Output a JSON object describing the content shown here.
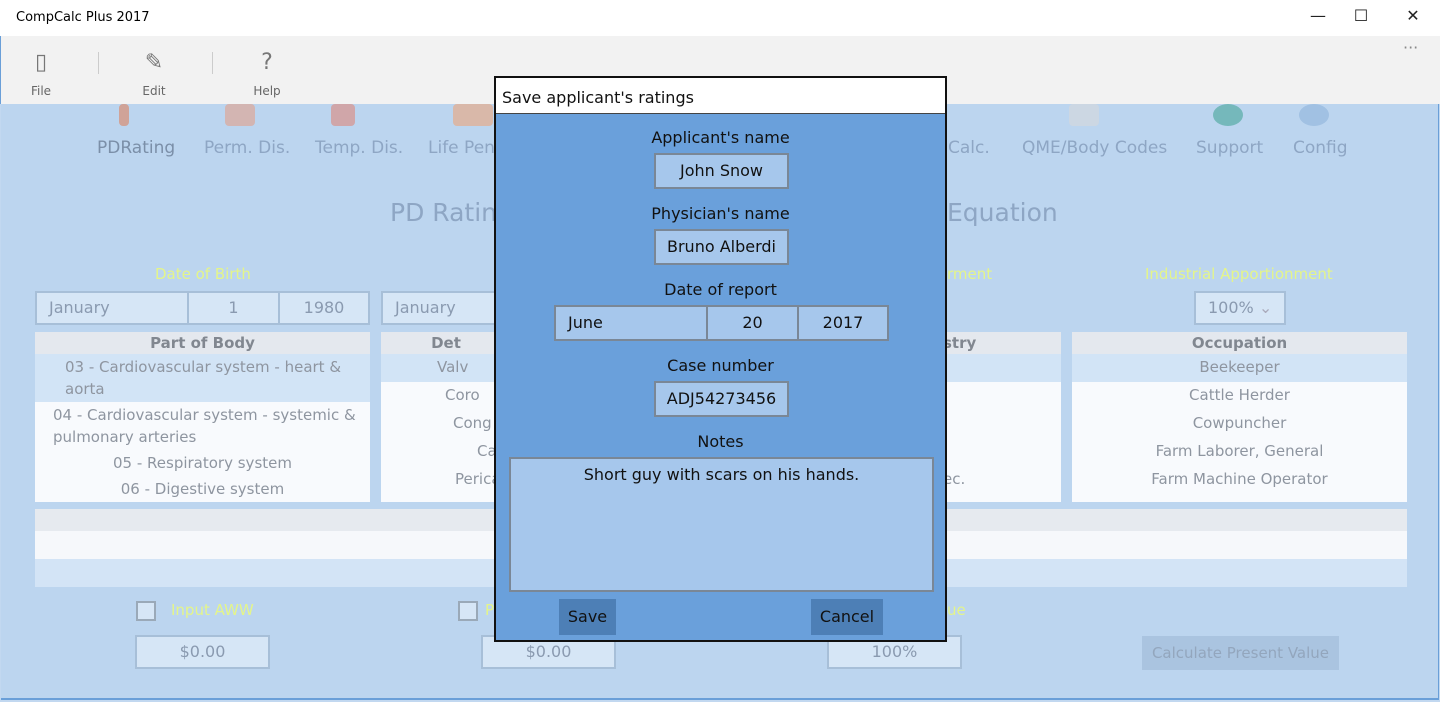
{
  "window": {
    "title": "CompCalc Plus 2017",
    "minimize": "—",
    "maximize": "☐",
    "close": "✕",
    "more": "···"
  },
  "toolbar": [
    {
      "label": "File",
      "icon": "file-icon",
      "glyph": "▯"
    },
    {
      "label": "Edit",
      "icon": "pencil-icon",
      "glyph": "✎"
    },
    {
      "label": "Help",
      "icon": "question-icon",
      "glyph": "?"
    }
  ],
  "nav": [
    "PDRating",
    "Perm. Dis.",
    "Temp. Dis.",
    "Life Pens",
    "Calc.",
    "QME/Body Codes",
    "Support",
    "Config"
  ],
  "heading": {
    "left": "PD Ratin",
    "right": "Equation"
  },
  "labels": {
    "dob": "Date of Birth",
    "ment": "rment",
    "industrial": "Industrial Apportionment",
    "input_aww": "Input AWW",
    "p": "P",
    "ue": "ue"
  },
  "dob": {
    "month": "January",
    "day": "1",
    "year": "1980"
  },
  "doi_month": "January",
  "apportionment": "100%",
  "part_of_body": {
    "header": "Part of Body",
    "items": [
      "03 - Cardiovascular system - heart & aorta",
      "04 - Cardiovascular system - systemic & pulmonary arteries",
      "05 - Respiratory system",
      "06 - Digestive system"
    ]
  },
  "detail": {
    "header": "Det",
    "items": [
      "Valv",
      "Coro",
      "Cong",
      "Ca",
      "Perica"
    ]
  },
  "industry": {
    "header": "stry",
    "items": [
      "",
      "",
      "",
      "",
      "ec."
    ]
  },
  "occupation": {
    "header": "Occupation",
    "items": [
      "Beekeeper",
      "Cattle Herder",
      "Cowpuncher",
      "Farm Laborer, General",
      "Farm Machine Operator"
    ]
  },
  "bottom": {
    "aww": "$0.00",
    "other": "$0.00",
    "pct": "100%",
    "calc": "Calculate Present Value"
  },
  "dialog": {
    "title": "Save applicant's ratings",
    "applicant_label": "Applicant's name",
    "applicant": "John Snow",
    "physician_label": "Physician's name",
    "physician": "Bruno Alberdi",
    "date_label": "Date of report",
    "month": "June",
    "day": "20",
    "year": "2017",
    "case_label": "Case number",
    "case": "ADJ54273456",
    "notes_label": "Notes",
    "notes": "Short guy with scars on his hands.",
    "save": "Save",
    "cancel": "Cancel"
  }
}
